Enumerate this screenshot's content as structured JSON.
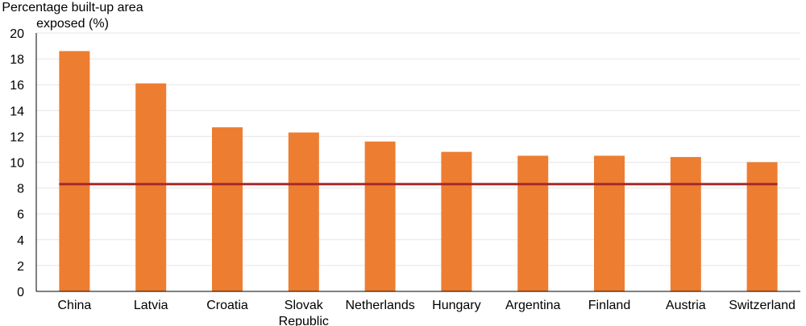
{
  "chart_data": {
    "type": "bar",
    "ylabel_lines": [
      "Percentage built-up area",
      "exposed (%)"
    ],
    "categories": [
      [
        "China"
      ],
      [
        "Latvia"
      ],
      [
        "Croatia"
      ],
      [
        "Slovak",
        "Republic"
      ],
      [
        "Netherlands"
      ],
      [
        "Hungary"
      ],
      [
        "Argentina"
      ],
      [
        "Finland"
      ],
      [
        "Austria"
      ],
      [
        "Switzerland"
      ]
    ],
    "values": [
      18.6,
      16.1,
      12.7,
      12.3,
      11.6,
      10.8,
      10.5,
      10.5,
      10.4,
      10.0
    ],
    "reference_line": 8.3,
    "ylim": [
      0,
      20
    ],
    "yticks": [
      0,
      2,
      4,
      6,
      8,
      10,
      12,
      14,
      16,
      18,
      20
    ],
    "grid": true,
    "colors": {
      "bar": "#ED7D31",
      "reference_line": "#A52A2A",
      "grid": "#e6e6e6",
      "axis": "#000000"
    }
  }
}
